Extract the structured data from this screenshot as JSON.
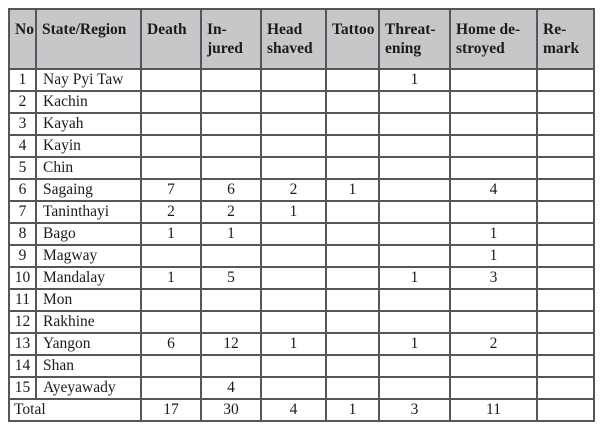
{
  "header": {
    "labels": [
      "No",
      "State/Region",
      "Death",
      "In-\njured",
      "Head\nshaved",
      "Tattoo",
      "Threat-\nening",
      "Home de-\nstroyed",
      "Re-\nmark"
    ]
  },
  "rows": [
    {
      "no": "1",
      "region": "Nay Pyi Taw",
      "death": "",
      "injured": "",
      "head_shaved": "",
      "tattoo": "",
      "threatening": "1",
      "home_destroyed": "",
      "remark": ""
    },
    {
      "no": "2",
      "region": "Kachin",
      "death": "",
      "injured": "",
      "head_shaved": "",
      "tattoo": "",
      "threatening": "",
      "home_destroyed": "",
      "remark": ""
    },
    {
      "no": "3",
      "region": "Kayah",
      "death": "",
      "injured": "",
      "head_shaved": "",
      "tattoo": "",
      "threatening": "",
      "home_destroyed": "",
      "remark": ""
    },
    {
      "no": "4",
      "region": "Kayin",
      "death": "",
      "injured": "",
      "head_shaved": "",
      "tattoo": "",
      "threatening": "",
      "home_destroyed": "",
      "remark": ""
    },
    {
      "no": "5",
      "region": "Chin",
      "death": "",
      "injured": "",
      "head_shaved": "",
      "tattoo": "",
      "threatening": "",
      "home_destroyed": "",
      "remark": ""
    },
    {
      "no": "6",
      "region": "Sagaing",
      "death": "7",
      "injured": "6",
      "head_shaved": "2",
      "tattoo": "1",
      "threatening": "",
      "home_destroyed": "4",
      "remark": ""
    },
    {
      "no": "7",
      "region": "Taninthayi",
      "death": "2",
      "injured": "2",
      "head_shaved": "1",
      "tattoo": "",
      "threatening": "",
      "home_destroyed": "",
      "remark": ""
    },
    {
      "no": "8",
      "region": "Bago",
      "death": "1",
      "injured": "1",
      "head_shaved": "",
      "tattoo": "",
      "threatening": "",
      "home_destroyed": "1",
      "remark": ""
    },
    {
      "no": "9",
      "region": "Magway",
      "death": "",
      "injured": "",
      "head_shaved": "",
      "tattoo": "",
      "threatening": "",
      "home_destroyed": "1",
      "remark": ""
    },
    {
      "no": "10",
      "region": "Mandalay",
      "death": "1",
      "injured": "5",
      "head_shaved": "",
      "tattoo": "",
      "threatening": "1",
      "home_destroyed": "3",
      "remark": ""
    },
    {
      "no": "11",
      "region": "Mon",
      "death": "",
      "injured": "",
      "head_shaved": "",
      "tattoo": "",
      "threatening": "",
      "home_destroyed": "",
      "remark": ""
    },
    {
      "no": "12",
      "region": "Rakhine",
      "death": "",
      "injured": "",
      "head_shaved": "",
      "tattoo": "",
      "threatening": "",
      "home_destroyed": "",
      "remark": ""
    },
    {
      "no": "13",
      "region": "Yangon",
      "death": "6",
      "injured": "12",
      "head_shaved": "1",
      "tattoo": "",
      "threatening": "1",
      "home_destroyed": "2",
      "remark": ""
    },
    {
      "no": "14",
      "region": "Shan",
      "death": "",
      "injured": "",
      "head_shaved": "",
      "tattoo": "",
      "threatening": "",
      "home_destroyed": "",
      "remark": ""
    },
    {
      "no": "15",
      "region": "Ayeyawady",
      "death": "",
      "injured": "4",
      "head_shaved": "",
      "tattoo": "",
      "threatening": "",
      "home_destroyed": "",
      "remark": ""
    }
  ],
  "total": {
    "label": "Total",
    "death": "17",
    "injured": "30",
    "head_shaved": "4",
    "tattoo": "1",
    "threatening": "3",
    "home_destroyed": "11",
    "remark": ""
  },
  "colors": {
    "header_bg": "#c7c7c9",
    "border": "#55555a",
    "text": "#1b1b1b"
  }
}
